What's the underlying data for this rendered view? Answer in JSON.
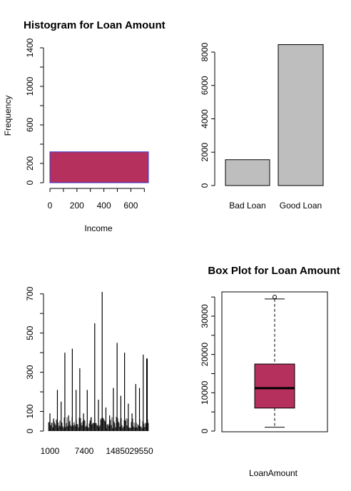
{
  "chart_data": [
    {
      "type": "bar",
      "title": "Histogram for Loan Amount",
      "xlabel": "Income",
      "ylabel": "Frequency",
      "xlim": [
        0,
        730
      ],
      "ylim": [
        0,
        1400
      ],
      "xticks": [
        0,
        200,
        400,
        600
      ],
      "xticks_minor": [
        0,
        100,
        200,
        300,
        400,
        500,
        600,
        700
      ],
      "yticks": [
        0,
        200,
        600,
        1000,
        1400
      ],
      "yticks_minor": [
        0,
        200,
        400,
        600,
        800,
        1000,
        1200,
        1400
      ],
      "bins": [
        {
          "from": 0,
          "to": 730,
          "value": 320
        }
      ],
      "fill": "#b5305c",
      "border": "#3333cc"
    },
    {
      "type": "bar",
      "title": "",
      "categories": [
        "Bad Loan",
        "Good Loan"
      ],
      "values": [
        1550,
        8450
      ],
      "ylim": [
        0,
        8000
      ],
      "yticks": [
        0,
        2000,
        4000,
        6000,
        8000
      ],
      "fill": "#bebebe"
    },
    {
      "type": "bar",
      "title": "",
      "x_tick_labels": [
        "1000",
        "7400",
        "14850",
        "29550"
      ],
      "yticks": [
        0,
        100,
        300,
        500,
        700
      ],
      "yticks_minor": [
        0,
        100,
        200,
        300,
        400,
        500,
        600,
        700
      ],
      "ylim": [
        0,
        710
      ],
      "tall_values": [
        90,
        60,
        210,
        150,
        400,
        80,
        420,
        210,
        320,
        90,
        210,
        70,
        550,
        160,
        710,
        120,
        80,
        220,
        450,
        180,
        400,
        140,
        90,
        240,
        220,
        390,
        370
      ],
      "fill": "#000000"
    },
    {
      "type": "box",
      "title": "Box Plot for Loan Amount",
      "xlabel": "LoanAmount",
      "yticks": [
        0,
        10000,
        20000,
        30000
      ],
      "yticks_minor": [
        0,
        5000,
        10000,
        15000,
        20000,
        25000,
        30000,
        35000
      ],
      "ylim": [
        0,
        35000
      ],
      "whisker_low": 1000,
      "q1": 6000,
      "median": 11200,
      "q3": 17500,
      "whisker_high": 34500,
      "outliers": [
        35000
      ],
      "fill": "#b5305c"
    }
  ]
}
